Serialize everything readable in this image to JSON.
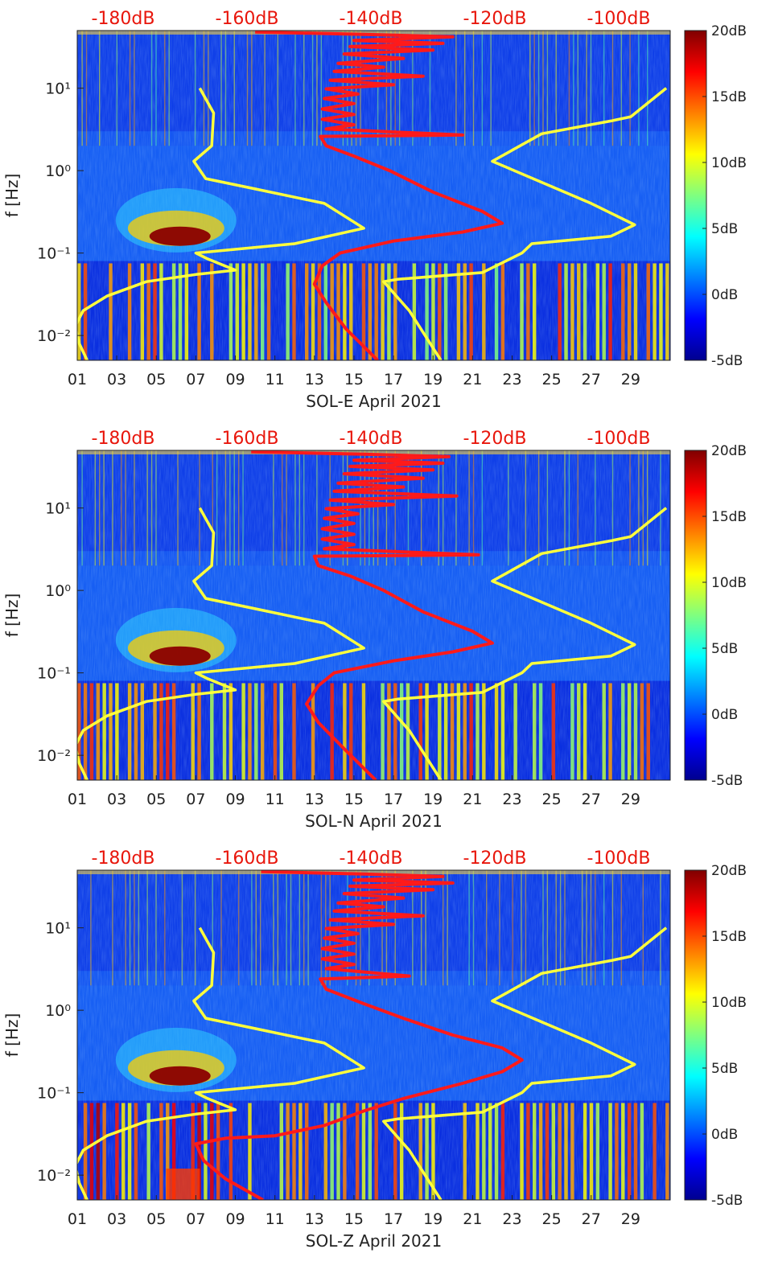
{
  "chart_data": [
    {
      "type": "heatmap",
      "xlabel": "SOL-E April 2021",
      "ylabel": "f [Hz]",
      "yscale": "log",
      "ylim": [
        0.005,
        50
      ],
      "xlim": [
        1,
        31
      ],
      "x_ticks": [
        "01",
        "03",
        "05",
        "07",
        "09",
        "11",
        "13",
        "15",
        "17",
        "19",
        "21",
        "23",
        "25",
        "27",
        "29"
      ],
      "y_ticks": [
        "10⁻²",
        "10⁻¹",
        "10⁰",
        "10¹"
      ],
      "top_ticks": [
        "-180dB",
        "-160dB",
        "-140dB",
        "-120dB",
        "-100dB"
      ],
      "colorbar": {
        "ticks": [
          "20dB",
          "15dB",
          "10dB",
          "5dB",
          "0dB",
          "-5dB"
        ],
        "range": [
          -5,
          20
        ],
        "colormap": "jet"
      },
      "series": [
        {
          "color": "#ff1a1a",
          "points": [
            [
              16.2,
              0.005
            ],
            [
              14.6,
              0.012
            ],
            [
              13.6,
              0.025
            ],
            [
              13.0,
              0.042
            ],
            [
              13.4,
              0.07
            ],
            [
              14.3,
              0.1
            ],
            [
              17.0,
              0.14
            ],
            [
              20.5,
              0.18
            ],
            [
              22.5,
              0.23
            ],
            [
              21.5,
              0.32
            ],
            [
              19.0,
              0.55
            ],
            [
              16.8,
              1.0
            ],
            [
              15.0,
              1.5
            ],
            [
              13.6,
              2.0
            ],
            [
              13.3,
              2.6
            ],
            [
              20.5,
              2.7
            ],
            [
              13.6,
              3.2
            ],
            [
              15.0,
              3.6
            ],
            [
              13.4,
              4.2
            ],
            [
              15.0,
              4.8
            ],
            [
              13.4,
              5.6
            ],
            [
              15.0,
              6.5
            ],
            [
              13.5,
              7.5
            ],
            [
              15.2,
              8.5
            ],
            [
              13.6,
              9.8
            ],
            [
              17.0,
              11.0
            ],
            [
              13.8,
              12.5
            ],
            [
              18.5,
              14.0
            ],
            [
              14.0,
              16.0
            ],
            [
              16.5,
              18.0
            ],
            [
              14.2,
              20.0
            ],
            [
              17.5,
              23.0
            ],
            [
              14.5,
              26.0
            ],
            [
              19.0,
              29.0
            ],
            [
              14.8,
              32.0
            ],
            [
              19.5,
              35.0
            ],
            [
              15.0,
              38.0
            ],
            [
              20.0,
              42.0
            ],
            [
              15.5,
              45.0
            ],
            [
              10.0,
              48.0
            ]
          ]
        },
        {
          "color": "#ffff3c",
          "points": [
            [
              1.5,
              0.005
            ],
            [
              1.1,
              0.008
            ],
            [
              0.9,
              0.013
            ],
            [
              1.3,
              0.02
            ],
            [
              2.5,
              0.03
            ],
            [
              4.5,
              0.045
            ],
            [
              7.0,
              0.055
            ],
            [
              9.0,
              0.062
            ],
            [
              7.6,
              0.085
            ],
            [
              7.0,
              0.1
            ],
            [
              12.0,
              0.13
            ],
            [
              15.5,
              0.2
            ],
            [
              13.5,
              0.4
            ],
            [
              10.0,
              0.6
            ],
            [
              7.5,
              0.8
            ],
            [
              6.9,
              1.3
            ],
            [
              7.8,
              2.0
            ],
            [
              7.9,
              5.0
            ],
            [
              7.2,
              10.0
            ]
          ]
        },
        {
          "color": "#ffff3c",
          "points": [
            [
              19.4,
              0.005
            ],
            [
              17.8,
              0.02
            ],
            [
              16.5,
              0.045
            ],
            [
              17.2,
              0.048
            ],
            [
              21.5,
              0.058
            ],
            [
              23.5,
              0.1
            ],
            [
              24.0,
              0.13
            ],
            [
              28.0,
              0.16
            ],
            [
              29.2,
              0.22
            ],
            [
              27.0,
              0.4
            ],
            [
              22.0,
              1.3
            ],
            [
              24.5,
              2.8
            ],
            [
              28.0,
              4.0
            ],
            [
              29.0,
              4.5
            ],
            [
              30.8,
              10.0
            ]
          ]
        }
      ]
    },
    {
      "type": "heatmap",
      "xlabel": "SOL-N April 2021",
      "ylabel": "f [Hz]",
      "yscale": "log",
      "ylim": [
        0.005,
        50
      ],
      "xlim": [
        1,
        31
      ],
      "x_ticks": [
        "01",
        "03",
        "05",
        "07",
        "09",
        "11",
        "13",
        "15",
        "17",
        "19",
        "21",
        "23",
        "25",
        "27",
        "29"
      ],
      "y_ticks": [
        "10⁻²",
        "10⁻¹",
        "10⁰",
        "10¹"
      ],
      "top_ticks": [
        "-180dB",
        "-160dB",
        "-140dB",
        "-120dB",
        "-100dB"
      ],
      "colorbar": {
        "ticks": [
          "20dB",
          "15dB",
          "10dB",
          "5dB",
          "0dB",
          "-5dB"
        ],
        "range": [
          -5,
          20
        ],
        "colormap": "jet"
      },
      "series": [
        {
          "color": "#ff1a1a",
          "points": [
            [
              16.1,
              0.005
            ],
            [
              14.5,
              0.012
            ],
            [
              13.2,
              0.025
            ],
            [
              12.6,
              0.042
            ],
            [
              13.2,
              0.07
            ],
            [
              14.0,
              0.1
            ],
            [
              17.0,
              0.14
            ],
            [
              20.0,
              0.18
            ],
            [
              22.0,
              0.23
            ],
            [
              21.0,
              0.32
            ],
            [
              18.5,
              0.55
            ],
            [
              16.5,
              1.0
            ],
            [
              14.8,
              1.5
            ],
            [
              13.2,
              2.0
            ],
            [
              13.0,
              2.6
            ],
            [
              21.3,
              2.7
            ],
            [
              13.5,
              3.2
            ],
            [
              15.0,
              3.6
            ],
            [
              13.4,
              4.2
            ],
            [
              15.0,
              4.8
            ],
            [
              13.4,
              5.6
            ],
            [
              15.0,
              6.5
            ],
            [
              13.5,
              7.5
            ],
            [
              15.2,
              8.5
            ],
            [
              13.6,
              9.8
            ],
            [
              17.0,
              11.0
            ],
            [
              13.8,
              12.5
            ],
            [
              20.2,
              14.0
            ],
            [
              14.0,
              16.0
            ],
            [
              17.5,
              18.0
            ],
            [
              14.2,
              20.0
            ],
            [
              18.5,
              23.0
            ],
            [
              14.5,
              26.0
            ],
            [
              19.0,
              29.0
            ],
            [
              14.8,
              32.0
            ],
            [
              19.5,
              35.0
            ],
            [
              15.0,
              38.0
            ],
            [
              19.8,
              42.0
            ],
            [
              15.5,
              45.0
            ],
            [
              9.8,
              48.0
            ]
          ]
        },
        {
          "color": "#ffff3c",
          "points": [
            [
              1.5,
              0.005
            ],
            [
              1.1,
              0.008
            ],
            [
              0.9,
              0.013
            ],
            [
              1.3,
              0.02
            ],
            [
              2.5,
              0.03
            ],
            [
              4.5,
              0.045
            ],
            [
              7.0,
              0.055
            ],
            [
              9.0,
              0.062
            ],
            [
              7.6,
              0.085
            ],
            [
              7.0,
              0.1
            ],
            [
              12.0,
              0.13
            ],
            [
              15.5,
              0.2
            ],
            [
              13.5,
              0.4
            ],
            [
              10.0,
              0.6
            ],
            [
              7.5,
              0.8
            ],
            [
              6.9,
              1.3
            ],
            [
              7.8,
              2.0
            ],
            [
              7.9,
              5.0
            ],
            [
              7.2,
              10.0
            ]
          ]
        },
        {
          "color": "#ffff3c",
          "points": [
            [
              19.4,
              0.005
            ],
            [
              17.8,
              0.02
            ],
            [
              16.5,
              0.045
            ],
            [
              17.2,
              0.048
            ],
            [
              21.5,
              0.058
            ],
            [
              23.5,
              0.1
            ],
            [
              24.0,
              0.13
            ],
            [
              28.0,
              0.16
            ],
            [
              29.2,
              0.22
            ],
            [
              27.0,
              0.4
            ],
            [
              22.0,
              1.3
            ],
            [
              24.5,
              2.8
            ],
            [
              28.0,
              4.0
            ],
            [
              29.0,
              4.5
            ],
            [
              30.8,
              10.0
            ]
          ]
        }
      ]
    },
    {
      "type": "heatmap",
      "xlabel": "SOL-Z April 2021",
      "ylabel": "f [Hz]",
      "yscale": "log",
      "ylim": [
        0.005,
        50
      ],
      "xlim": [
        1,
        31
      ],
      "x_ticks": [
        "01",
        "03",
        "05",
        "07",
        "09",
        "11",
        "13",
        "15",
        "17",
        "19",
        "21",
        "23",
        "25",
        "27",
        "29"
      ],
      "y_ticks": [
        "10⁻²",
        "10⁻¹",
        "10⁰",
        "10¹"
      ],
      "top_ticks": [
        "-180dB",
        "-160dB",
        "-140dB",
        "-120dB",
        "-100dB"
      ],
      "colorbar": {
        "ticks": [
          "20dB",
          "15dB",
          "10dB",
          "5dB",
          "0dB",
          "-5dB"
        ],
        "range": [
          -5,
          20
        ],
        "colormap": "jet"
      },
      "series": [
        {
          "color": "#ff1a1a",
          "points": [
            [
              10.4,
              0.005
            ],
            [
              8.5,
              0.009
            ],
            [
              7.4,
              0.015
            ],
            [
              7.0,
              0.024
            ],
            [
              8.5,
              0.028
            ],
            [
              11.0,
              0.03
            ],
            [
              13.5,
              0.04
            ],
            [
              15.5,
              0.06
            ],
            [
              17.5,
              0.085
            ],
            [
              20.5,
              0.13
            ],
            [
              22.5,
              0.18
            ],
            [
              23.5,
              0.25
            ],
            [
              22.5,
              0.35
            ],
            [
              20.0,
              0.5
            ],
            [
              17.5,
              0.8
            ],
            [
              15.5,
              1.2
            ],
            [
              13.6,
              1.8
            ],
            [
              13.3,
              2.4
            ],
            [
              17.8,
              2.6
            ],
            [
              13.6,
              3.2
            ],
            [
              15.0,
              3.6
            ],
            [
              13.4,
              4.2
            ],
            [
              15.0,
              4.8
            ],
            [
              13.4,
              5.6
            ],
            [
              15.0,
              6.5
            ],
            [
              13.5,
              7.5
            ],
            [
              15.2,
              8.5
            ],
            [
              13.6,
              9.8
            ],
            [
              17.0,
              11.0
            ],
            [
              13.8,
              12.5
            ],
            [
              18.5,
              14.0
            ],
            [
              14.0,
              16.0
            ],
            [
              16.5,
              18.0
            ],
            [
              14.2,
              20.0
            ],
            [
              17.5,
              23.0
            ],
            [
              14.5,
              26.0
            ],
            [
              19.0,
              29.0
            ],
            [
              14.8,
              32.0
            ],
            [
              20.0,
              35.0
            ],
            [
              15.0,
              38.0
            ],
            [
              19.5,
              42.0
            ],
            [
              15.5,
              45.0
            ],
            [
              10.3,
              48.0
            ]
          ]
        },
        {
          "color": "#ffff3c",
          "points": [
            [
              1.5,
              0.005
            ],
            [
              1.1,
              0.008
            ],
            [
              0.9,
              0.013
            ],
            [
              1.3,
              0.02
            ],
            [
              2.5,
              0.03
            ],
            [
              4.5,
              0.045
            ],
            [
              7.0,
              0.055
            ],
            [
              9.0,
              0.062
            ],
            [
              7.6,
              0.085
            ],
            [
              7.0,
              0.1
            ],
            [
              12.0,
              0.13
            ],
            [
              15.5,
              0.2
            ],
            [
              13.5,
              0.4
            ],
            [
              10.0,
              0.6
            ],
            [
              7.5,
              0.8
            ],
            [
              6.9,
              1.3
            ],
            [
              7.8,
              2.0
            ],
            [
              7.9,
              5.0
            ],
            [
              7.2,
              10.0
            ]
          ]
        },
        {
          "color": "#ffff3c",
          "points": [
            [
              19.4,
              0.005
            ],
            [
              17.8,
              0.02
            ],
            [
              16.5,
              0.045
            ],
            [
              17.2,
              0.048
            ],
            [
              21.5,
              0.058
            ],
            [
              23.5,
              0.1
            ],
            [
              24.0,
              0.13
            ],
            [
              28.0,
              0.16
            ],
            [
              29.2,
              0.22
            ],
            [
              27.0,
              0.4
            ],
            [
              22.0,
              1.3
            ],
            [
              24.5,
              2.8
            ],
            [
              28.0,
              4.0
            ],
            [
              29.0,
              4.5
            ],
            [
              30.8,
              10.0
            ]
          ]
        }
      ]
    }
  ]
}
